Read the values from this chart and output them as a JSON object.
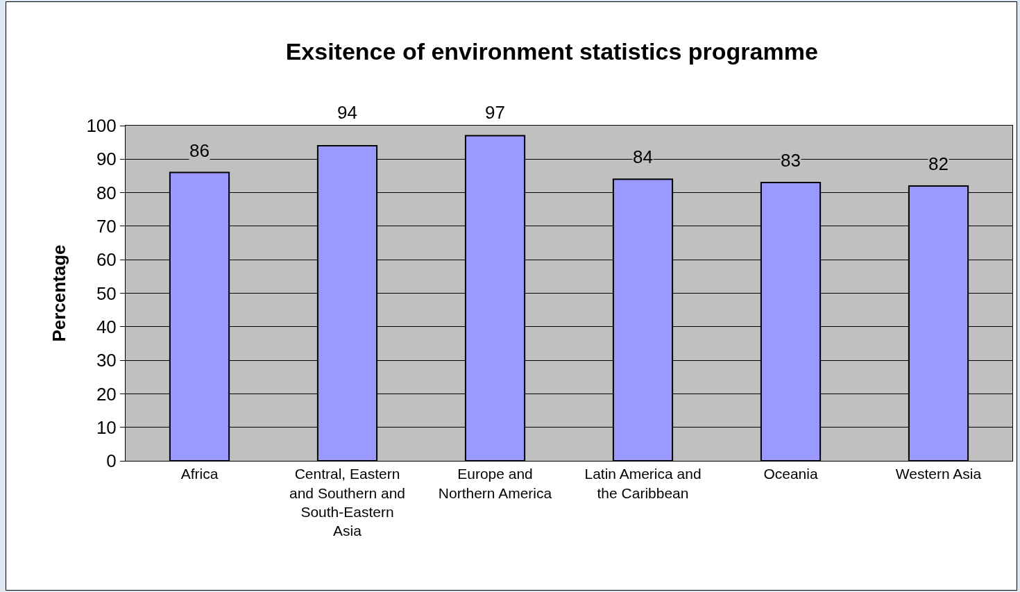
{
  "chart_data": {
    "type": "bar",
    "title": "Exsitence of environment statistics programme",
    "ylabel": "Percentage",
    "categories": [
      "Africa",
      "Central, Eastern and Southern and South-Eastern Asia",
      "Europe and Northern America",
      "Latin America and the Caribbean",
      "Oceania",
      "Western Asia"
    ],
    "values": [
      86,
      94,
      97,
      84,
      83,
      82
    ],
    "color": "#9999ff",
    "ylim": [
      0,
      100
    ],
    "yticks": [
      0,
      10,
      20,
      30,
      40,
      50,
      60,
      70,
      80,
      90,
      100
    ],
    "grid": "y",
    "data_labels": true
  }
}
